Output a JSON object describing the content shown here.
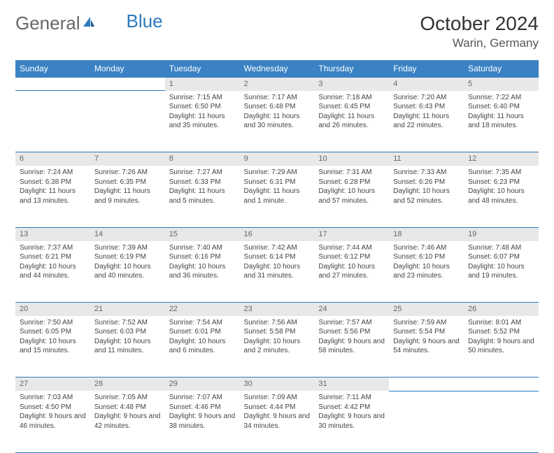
{
  "brand": {
    "part1": "General",
    "part2": "Blue"
  },
  "title": "October 2024",
  "location": "Warin, Germany",
  "colors": {
    "header_bg": "#3a82c4",
    "border": "#2b7bbf",
    "daynum_bg": "#e8e8e8",
    "text": "#444444"
  },
  "day_headers": [
    "Sunday",
    "Monday",
    "Tuesday",
    "Wednesday",
    "Thursday",
    "Friday",
    "Saturday"
  ],
  "weeks": [
    [
      null,
      null,
      {
        "n": "1",
        "sunrise": "Sunrise: 7:15 AM",
        "sunset": "Sunset: 6:50 PM",
        "daylight": "Daylight: 11 hours and 35 minutes."
      },
      {
        "n": "2",
        "sunrise": "Sunrise: 7:17 AM",
        "sunset": "Sunset: 6:48 PM",
        "daylight": "Daylight: 11 hours and 30 minutes."
      },
      {
        "n": "3",
        "sunrise": "Sunrise: 7:18 AM",
        "sunset": "Sunset: 6:45 PM",
        "daylight": "Daylight: 11 hours and 26 minutes."
      },
      {
        "n": "4",
        "sunrise": "Sunrise: 7:20 AM",
        "sunset": "Sunset: 6:43 PM",
        "daylight": "Daylight: 11 hours and 22 minutes."
      },
      {
        "n": "5",
        "sunrise": "Sunrise: 7:22 AM",
        "sunset": "Sunset: 6:40 PM",
        "daylight": "Daylight: 11 hours and 18 minutes."
      }
    ],
    [
      {
        "n": "6",
        "sunrise": "Sunrise: 7:24 AM",
        "sunset": "Sunset: 6:38 PM",
        "daylight": "Daylight: 11 hours and 13 minutes."
      },
      {
        "n": "7",
        "sunrise": "Sunrise: 7:26 AM",
        "sunset": "Sunset: 6:35 PM",
        "daylight": "Daylight: 11 hours and 9 minutes."
      },
      {
        "n": "8",
        "sunrise": "Sunrise: 7:27 AM",
        "sunset": "Sunset: 6:33 PM",
        "daylight": "Daylight: 11 hours and 5 minutes."
      },
      {
        "n": "9",
        "sunrise": "Sunrise: 7:29 AM",
        "sunset": "Sunset: 6:31 PM",
        "daylight": "Daylight: 11 hours and 1 minute."
      },
      {
        "n": "10",
        "sunrise": "Sunrise: 7:31 AM",
        "sunset": "Sunset: 6:28 PM",
        "daylight": "Daylight: 10 hours and 57 minutes."
      },
      {
        "n": "11",
        "sunrise": "Sunrise: 7:33 AM",
        "sunset": "Sunset: 6:26 PM",
        "daylight": "Daylight: 10 hours and 52 minutes."
      },
      {
        "n": "12",
        "sunrise": "Sunrise: 7:35 AM",
        "sunset": "Sunset: 6:23 PM",
        "daylight": "Daylight: 10 hours and 48 minutes."
      }
    ],
    [
      {
        "n": "13",
        "sunrise": "Sunrise: 7:37 AM",
        "sunset": "Sunset: 6:21 PM",
        "daylight": "Daylight: 10 hours and 44 minutes."
      },
      {
        "n": "14",
        "sunrise": "Sunrise: 7:39 AM",
        "sunset": "Sunset: 6:19 PM",
        "daylight": "Daylight: 10 hours and 40 minutes."
      },
      {
        "n": "15",
        "sunrise": "Sunrise: 7:40 AM",
        "sunset": "Sunset: 6:16 PM",
        "daylight": "Daylight: 10 hours and 36 minutes."
      },
      {
        "n": "16",
        "sunrise": "Sunrise: 7:42 AM",
        "sunset": "Sunset: 6:14 PM",
        "daylight": "Daylight: 10 hours and 31 minutes."
      },
      {
        "n": "17",
        "sunrise": "Sunrise: 7:44 AM",
        "sunset": "Sunset: 6:12 PM",
        "daylight": "Daylight: 10 hours and 27 minutes."
      },
      {
        "n": "18",
        "sunrise": "Sunrise: 7:46 AM",
        "sunset": "Sunset: 6:10 PM",
        "daylight": "Daylight: 10 hours and 23 minutes."
      },
      {
        "n": "19",
        "sunrise": "Sunrise: 7:48 AM",
        "sunset": "Sunset: 6:07 PM",
        "daylight": "Daylight: 10 hours and 19 minutes."
      }
    ],
    [
      {
        "n": "20",
        "sunrise": "Sunrise: 7:50 AM",
        "sunset": "Sunset: 6:05 PM",
        "daylight": "Daylight: 10 hours and 15 minutes."
      },
      {
        "n": "21",
        "sunrise": "Sunrise: 7:52 AM",
        "sunset": "Sunset: 6:03 PM",
        "daylight": "Daylight: 10 hours and 11 minutes."
      },
      {
        "n": "22",
        "sunrise": "Sunrise: 7:54 AM",
        "sunset": "Sunset: 6:01 PM",
        "daylight": "Daylight: 10 hours and 6 minutes."
      },
      {
        "n": "23",
        "sunrise": "Sunrise: 7:56 AM",
        "sunset": "Sunset: 5:58 PM",
        "daylight": "Daylight: 10 hours and 2 minutes."
      },
      {
        "n": "24",
        "sunrise": "Sunrise: 7:57 AM",
        "sunset": "Sunset: 5:56 PM",
        "daylight": "Daylight: 9 hours and 58 minutes."
      },
      {
        "n": "25",
        "sunrise": "Sunrise: 7:59 AM",
        "sunset": "Sunset: 5:54 PM",
        "daylight": "Daylight: 9 hours and 54 minutes."
      },
      {
        "n": "26",
        "sunrise": "Sunrise: 8:01 AM",
        "sunset": "Sunset: 5:52 PM",
        "daylight": "Daylight: 9 hours and 50 minutes."
      }
    ],
    [
      {
        "n": "27",
        "sunrise": "Sunrise: 7:03 AM",
        "sunset": "Sunset: 4:50 PM",
        "daylight": "Daylight: 9 hours and 46 minutes."
      },
      {
        "n": "28",
        "sunrise": "Sunrise: 7:05 AM",
        "sunset": "Sunset: 4:48 PM",
        "daylight": "Daylight: 9 hours and 42 minutes."
      },
      {
        "n": "29",
        "sunrise": "Sunrise: 7:07 AM",
        "sunset": "Sunset: 4:46 PM",
        "daylight": "Daylight: 9 hours and 38 minutes."
      },
      {
        "n": "30",
        "sunrise": "Sunrise: 7:09 AM",
        "sunset": "Sunset: 4:44 PM",
        "daylight": "Daylight: 9 hours and 34 minutes."
      },
      {
        "n": "31",
        "sunrise": "Sunrise: 7:11 AM",
        "sunset": "Sunset: 4:42 PM",
        "daylight": "Daylight: 9 hours and 30 minutes."
      },
      null,
      null
    ]
  ]
}
